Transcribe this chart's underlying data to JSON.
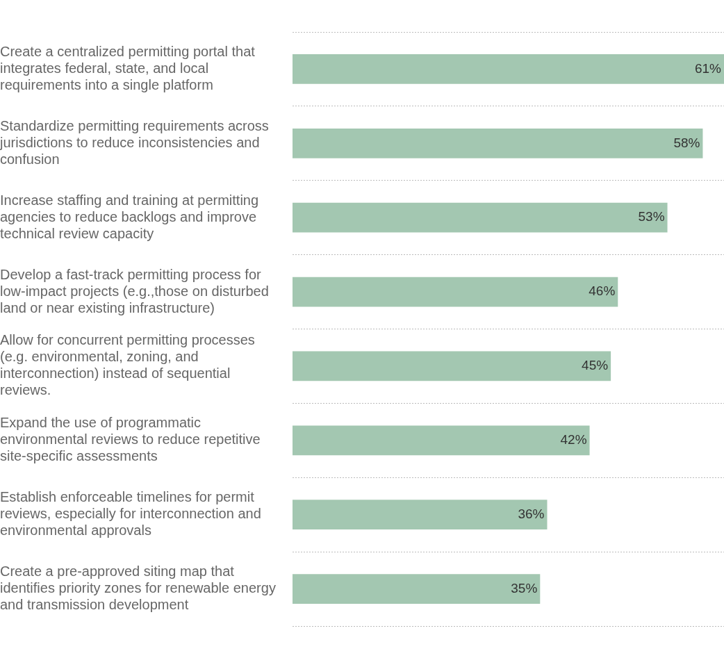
{
  "chart_data": {
    "type": "bar",
    "orientation": "horizontal",
    "categories": [
      "Create a centralized permitting portal that integrates federal, state, and local requirements into a single platform",
      "Standardize permitting requirements across jurisdictions to reduce inconsistencies and confusion",
      "Increase staffing and training at permitting agencies to reduce backlogs and improve technical review capacity",
      "Develop a fast-track permitting process for low-impact projects (e.g.,those on disturbed land or near existing infrastructure)",
      "Allow for concurrent permitting processes (e.g. environmental, zoning, and interconnection) instead of sequential reviews.",
      "Expand the use of programmatic environmental reviews to reduce repetitive site-specific assessments",
      "Establish enforceable timelines for permit reviews, especially for interconnection and environmental approvals",
      "Create a pre-approved siting map that identifies priority zones for renewable energy and transmission development"
    ],
    "values": [
      61,
      58,
      53,
      46,
      45,
      42,
      36,
      35
    ],
    "value_labels": [
      "61%",
      "58%",
      "53%",
      "46%",
      "45%",
      "42%",
      "36%",
      "35%"
    ],
    "color": "#a3c7b1",
    "xlim": [
      0,
      61
    ],
    "tick_labels": "y",
    "grid": "y",
    "legend": false
  }
}
